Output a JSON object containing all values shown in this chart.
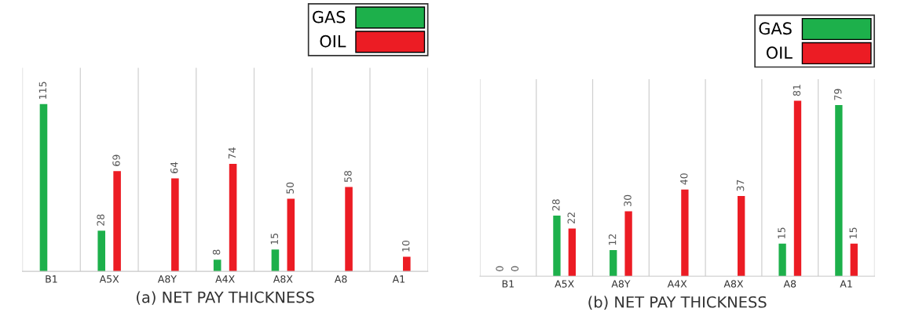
{
  "chart_data": [
    {
      "type": "bar",
      "xlabel": "(a) NET PAY THICKNESS",
      "categories": [
        "B1",
        "A5X",
        "A8Y",
        "A4X",
        "A8X",
        "A8",
        "A1"
      ],
      "ylim": [
        0,
        140
      ],
      "tick_labels": "x",
      "grid": "x",
      "legend": "top right",
      "data_labels": true,
      "series": [
        {
          "name": "GAS",
          "color": "#1db04b",
          "values": [
            115,
            28,
            null,
            8,
            15,
            null,
            null
          ]
        },
        {
          "name": "OIL",
          "color": "#ec1c24",
          "values": [
            null,
            69,
            64,
            74,
            50,
            58,
            10
          ]
        }
      ]
    },
    {
      "type": "bar",
      "xlabel": "(b) NET PAY THICKNESS",
      "categories": [
        "B1",
        "A5X",
        "A8Y",
        "A4X",
        "A8X",
        "A8",
        "A1"
      ],
      "ylim": [
        0,
        91
      ],
      "tick_labels": "x",
      "grid": "x",
      "legend": "top right",
      "data_labels": true,
      "series": [
        {
          "name": "GAS",
          "color": "#1db04b",
          "values": [
            0,
            28,
            12,
            null,
            null,
            15,
            79
          ]
        },
        {
          "name": "OIL",
          "color": "#ec1c24",
          "values": [
            0,
            22,
            30,
            40,
            37,
            81,
            15
          ]
        }
      ]
    }
  ]
}
